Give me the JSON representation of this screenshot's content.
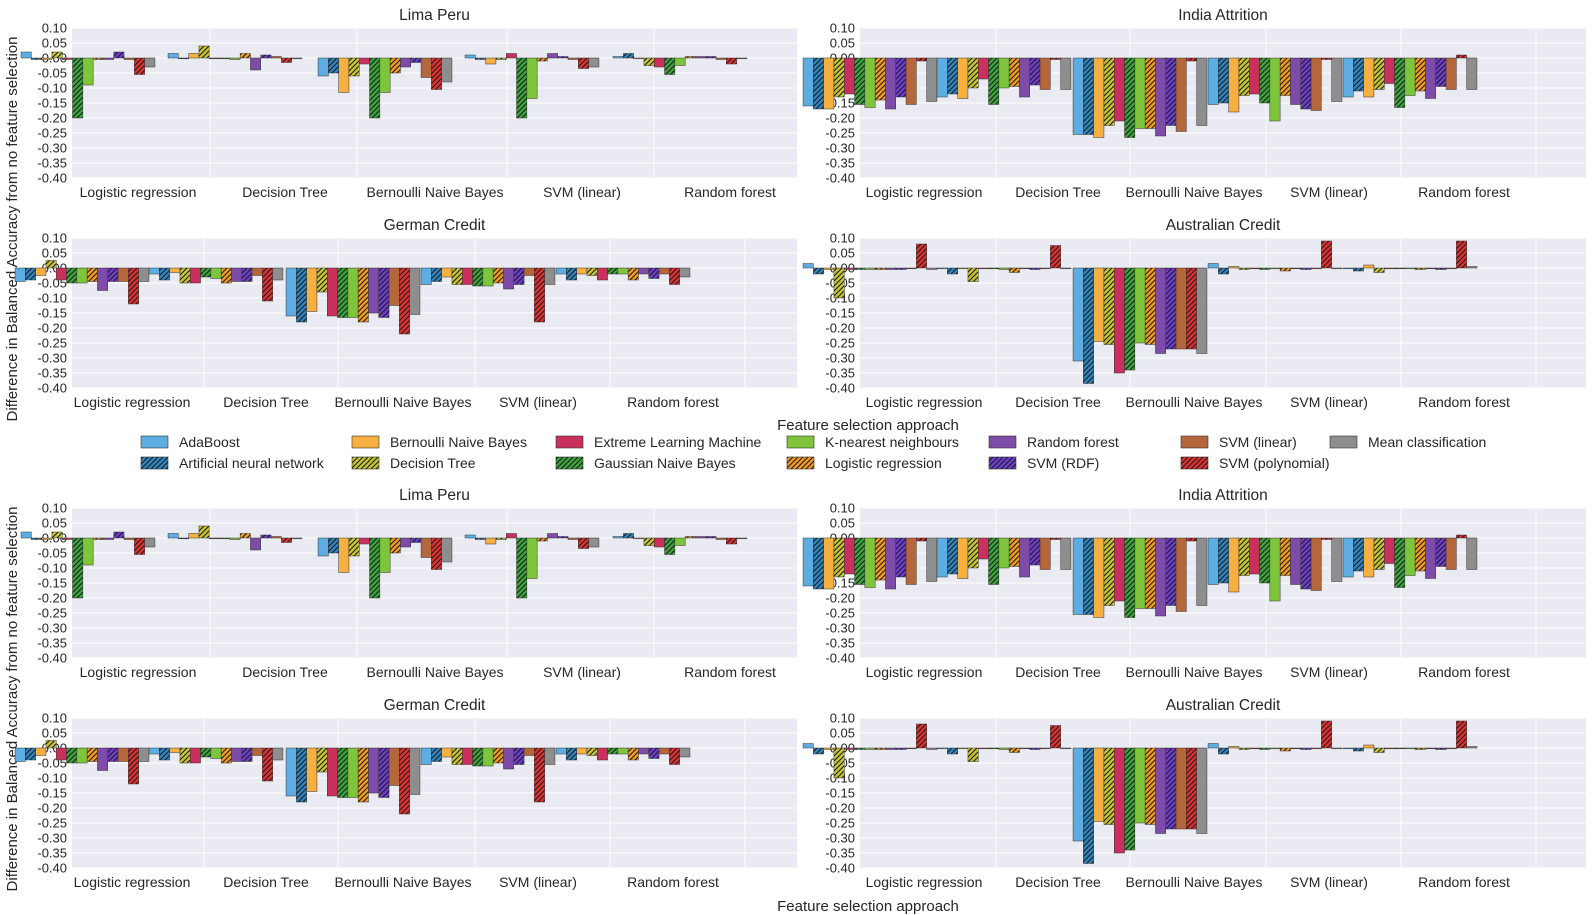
{
  "figure": {
    "ylabel": "Difference in Balanced Accuracy from no feature selection",
    "xlabel": "Feature selection approach"
  },
  "legend": {
    "entries": [
      {
        "name": "AdaBoost",
        "color": "#5dade2",
        "hatch": false
      },
      {
        "name": "Artificial neural network",
        "color": "#2e86c1",
        "hatch": true
      },
      {
        "name": "Bernoulli Naive Bayes",
        "color": "#f5b041",
        "hatch": false
      },
      {
        "name": "Decision Tree",
        "color": "#c9c730",
        "hatch": true
      },
      {
        "name": "Extreme Learning Machine",
        "color": "#c9305e",
        "hatch": false
      },
      {
        "name": "Gaussian Naive Bayes",
        "color": "#3aa539",
        "hatch": true
      },
      {
        "name": "K-nearest neighbours",
        "color": "#7fc53b",
        "hatch": false
      },
      {
        "name": "Logistic regression",
        "color": "#f39c1f",
        "hatch": true
      },
      {
        "name": "Random forest",
        "color": "#7d4ba8",
        "hatch": false
      },
      {
        "name": "SVM (RDF)",
        "color": "#6f3ecf",
        "hatch": true
      },
      {
        "name": "SVM (linear)",
        "color": "#b5663b",
        "hatch": false
      },
      {
        "name": "SVM (polynomial)",
        "color": "#e03030",
        "hatch": true
      },
      {
        "name": "Mean classification",
        "color": "#8e8e8e",
        "hatch": false
      }
    ]
  },
  "chart_data": [
    {
      "type": "bar",
      "title": "Lima Peru",
      "categories": [
        "Logistic regression",
        "Decision Tree",
        "Bernoulli Naive Bayes",
        "SVM (linear)",
        "Random forest"
      ],
      "ylim": [
        -0.4,
        0.1
      ],
      "yticks": [
        "0.10",
        "0.05",
        "0.00",
        "-0.05",
        "-0.10",
        "-0.15",
        "-0.20",
        "-0.25",
        "-0.30",
        "-0.35",
        "-0.40"
      ],
      "values": [
        [
          0.02,
          -0.005,
          -0.005,
          0.02,
          -0.005,
          -0.2,
          -0.09,
          -0.005,
          -0.005,
          0.02,
          -0.005,
          -0.055,
          -0.03
        ],
        [
          0.015,
          0.0,
          0.015,
          0.04,
          0.0,
          0.0,
          -0.005,
          0.015,
          -0.04,
          0.01,
          0.005,
          -0.015,
          0.0
        ],
        [
          -0.06,
          -0.05,
          -0.115,
          -0.06,
          -0.02,
          -0.2,
          -0.115,
          -0.05,
          -0.03,
          -0.015,
          -0.065,
          -0.105,
          -0.08
        ],
        [
          0.01,
          -0.005,
          -0.02,
          -0.005,
          0.015,
          -0.2,
          -0.135,
          -0.01,
          0.015,
          0.005,
          -0.005,
          -0.035,
          -0.03
        ],
        [
          0.005,
          0.015,
          0.0,
          -0.025,
          -0.03,
          -0.055,
          -0.025,
          0.005,
          0.005,
          0.005,
          -0.005,
          -0.02,
          0.0
        ]
      ]
    },
    {
      "type": "bar",
      "title": "India Attrition",
      "categories": [
        "Logistic regression",
        "Decision Tree",
        "Bernoulli Naive Bayes",
        "SVM (linear)",
        "Random forest"
      ],
      "ylim": [
        -0.4,
        0.1
      ],
      "yticks": [
        "0.10",
        "0.05",
        "0.00",
        "-0.05",
        "-0.10",
        "-0.15",
        "-0.20",
        "-0.25",
        "-0.30",
        "-0.35",
        "-0.40"
      ],
      "values": [
        [
          -0.16,
          -0.17,
          -0.17,
          -0.13,
          -0.12,
          -0.155,
          -0.165,
          -0.14,
          -0.17,
          -0.13,
          -0.155,
          -0.01,
          -0.145
        ],
        [
          -0.13,
          -0.12,
          -0.135,
          -0.1,
          -0.07,
          -0.155,
          -0.1,
          -0.095,
          -0.13,
          -0.09,
          -0.105,
          -0.005,
          -0.105
        ],
        [
          -0.255,
          -0.255,
          -0.265,
          -0.225,
          -0.21,
          -0.265,
          -0.235,
          -0.235,
          -0.26,
          -0.225,
          -0.245,
          -0.01,
          -0.225
        ],
        [
          -0.155,
          -0.15,
          -0.18,
          -0.125,
          -0.12,
          -0.15,
          -0.21,
          -0.125,
          -0.155,
          -0.17,
          -0.175,
          -0.005,
          -0.145
        ],
        [
          -0.13,
          -0.11,
          -0.13,
          -0.105,
          -0.085,
          -0.165,
          -0.125,
          -0.11,
          -0.135,
          -0.095,
          -0.105,
          0.01,
          -0.105
        ]
      ]
    },
    {
      "type": "bar",
      "title": "German Credit",
      "categories": [
        "Logistic regression",
        "Decision Tree",
        "Bernoulli Naive Bayes",
        "SVM (linear)",
        "Random forest"
      ],
      "ylim": [
        -0.4,
        0.1
      ],
      "yticks": [
        "0.10",
        "0.05",
        "0.00",
        "-0.05",
        "-0.10",
        "-0.15",
        "-0.20",
        "-0.25",
        "-0.30",
        "-0.35",
        "-0.40"
      ],
      "values": [
        [
          -0.045,
          -0.04,
          -0.025,
          0.025,
          -0.04,
          -0.05,
          -0.05,
          -0.045,
          -0.075,
          -0.045,
          -0.045,
          -0.12,
          -0.045
        ],
        [
          -0.02,
          -0.04,
          -0.015,
          -0.05,
          -0.05,
          -0.03,
          -0.035,
          -0.05,
          -0.045,
          -0.045,
          -0.025,
          -0.11,
          -0.04
        ],
        [
          -0.16,
          -0.18,
          -0.145,
          -0.08,
          -0.16,
          -0.165,
          -0.165,
          -0.18,
          -0.15,
          -0.165,
          -0.125,
          -0.22,
          -0.155
        ],
        [
          -0.055,
          -0.045,
          -0.03,
          -0.055,
          -0.055,
          -0.06,
          -0.06,
          -0.05,
          -0.07,
          -0.055,
          -0.025,
          -0.18,
          -0.055
        ],
        [
          -0.02,
          -0.04,
          -0.02,
          -0.025,
          -0.04,
          -0.02,
          -0.02,
          -0.04,
          -0.02,
          -0.035,
          -0.02,
          -0.055,
          -0.03
        ]
      ]
    },
    {
      "type": "bar",
      "title": "Australian Credit",
      "categories": [
        "Logistic regression",
        "Decision Tree",
        "Bernoulli Naive Bayes",
        "SVM (linear)",
        "Random forest"
      ],
      "ylim": [
        -0.4,
        0.1
      ],
      "yticks": [
        "0.10",
        "0.05",
        "0.00",
        "-0.05",
        "-0.10",
        "-0.15",
        "-0.20",
        "-0.25",
        "-0.30",
        "-0.35",
        "-0.40"
      ],
      "values": [
        [
          0.015,
          -0.02,
          -0.005,
          -0.1,
          -0.005,
          -0.005,
          -0.005,
          -0.005,
          -0.005,
          -0.005,
          0.0,
          0.08,
          -0.005
        ],
        [
          0.0,
          -0.02,
          0.0,
          -0.045,
          0.0,
          0.0,
          -0.005,
          -0.015,
          0.0,
          -0.005,
          0.0,
          0.075,
          0.0
        ],
        [
          -0.31,
          -0.385,
          -0.245,
          -0.255,
          -0.35,
          -0.34,
          -0.25,
          -0.255,
          -0.285,
          -0.27,
          -0.27,
          -0.27,
          -0.285
        ],
        [
          0.015,
          -0.02,
          0.005,
          -0.005,
          0.0,
          -0.005,
          0.0,
          -0.01,
          0.0,
          -0.005,
          0.0,
          0.09,
          0.0
        ],
        [
          0.0,
          -0.01,
          0.01,
          -0.015,
          0.0,
          0.0,
          0.0,
          -0.005,
          0.0,
          -0.005,
          0.0,
          0.09,
          0.005
        ]
      ]
    }
  ]
}
